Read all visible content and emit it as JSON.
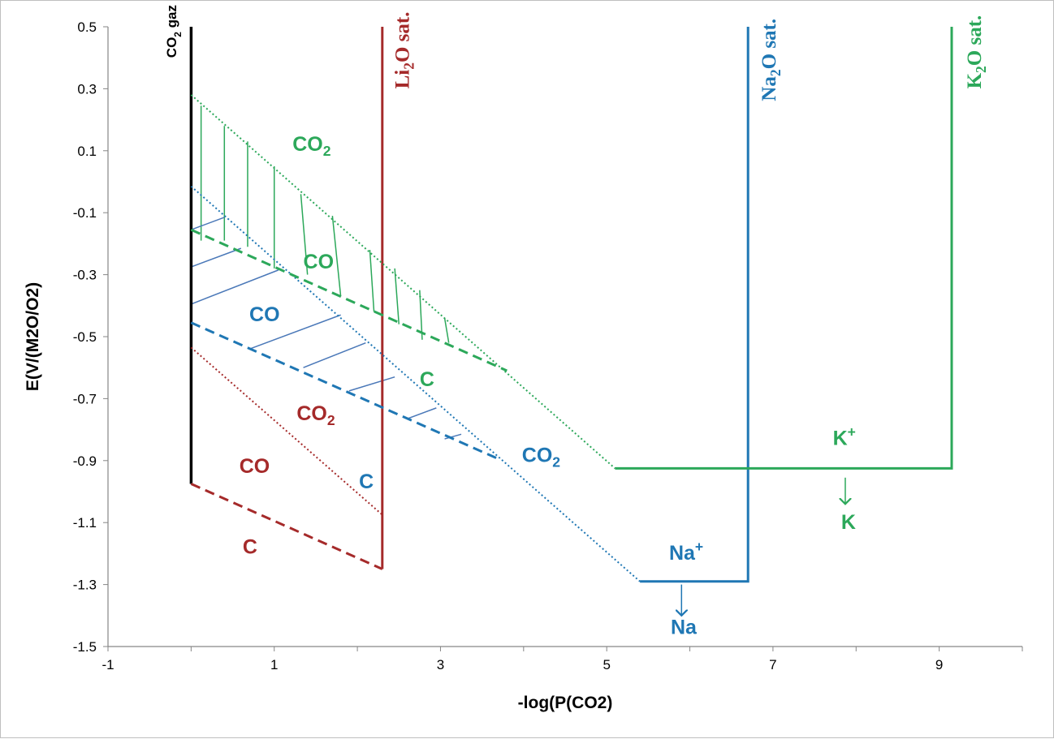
{
  "chart_data": {
    "type": "line",
    "xlabel": "-log(P(CO2)",
    "ylabel": "E(V/(M2O/O2)",
    "xlim": [
      -1,
      10
    ],
    "ylim": [
      -1.5,
      0.5
    ],
    "x_ticks": [
      "-1",
      "1",
      "3",
      "5",
      "7",
      "9"
    ],
    "y_ticks": [
      "0.5",
      "0.3",
      "0.1",
      "-0.1",
      "-0.3",
      "-0.5",
      "-0.7",
      "-0.9",
      "-1.1",
      "-1.3",
      "-1.5"
    ],
    "grid": false,
    "colors": {
      "li": "#a52a2a",
      "na": "#1f77b4",
      "k": "#2ca85a",
      "co2": "#000000"
    },
    "series": [
      {
        "key": "co2gaz",
        "color": "#000000",
        "style": "solid",
        "points": [
          [
            0,
            0.5
          ],
          [
            0,
            -0.975
          ]
        ]
      },
      {
        "key": "li_sat",
        "color": "#a52a2a",
        "style": "solid",
        "points": [
          [
            2.3,
            0.5
          ],
          [
            2.3,
            -1.25
          ]
        ]
      },
      {
        "key": "li_c_co",
        "color": "#a52a2a",
        "style": "dashed",
        "points": [
          [
            0,
            -0.975
          ],
          [
            2.3,
            -1.25
          ]
        ]
      },
      {
        "key": "li_co_co2",
        "color": "#a52a2a",
        "style": "dotted",
        "points": [
          [
            0,
            -0.535
          ],
          [
            2.3,
            -1.075
          ]
        ]
      },
      {
        "key": "na_co_co2",
        "color": "#1f77b4",
        "style": "dotted",
        "points": [
          [
            0,
            -0.015
          ],
          [
            5.4,
            -1.29
          ]
        ]
      },
      {
        "key": "na_c_co",
        "color": "#1f77b4",
        "style": "dashed",
        "points": [
          [
            0,
            -0.455
          ],
          [
            3.7,
            -0.895
          ]
        ]
      },
      {
        "key": "na_sat",
        "color": "#1f77b4",
        "style": "solid",
        "points": [
          [
            5.4,
            -1.29
          ],
          [
            6.7,
            -1.29
          ],
          [
            6.7,
            0.5
          ]
        ]
      },
      {
        "key": "k_co_co2",
        "color": "#2ca85a",
        "style": "dotted",
        "points": [
          [
            0,
            0.28
          ],
          [
            5.1,
            -0.925
          ]
        ]
      },
      {
        "key": "k_c_co",
        "color": "#2ca85a",
        "style": "dashed",
        "points": [
          [
            0,
            -0.155
          ],
          [
            3.8,
            -0.61
          ]
        ]
      },
      {
        "key": "k_sat",
        "color": "#2ca85a",
        "style": "solid",
        "points": [
          [
            5.1,
            -0.925
          ],
          [
            9.15,
            -0.925
          ],
          [
            9.15,
            0.5
          ]
        ]
      }
    ],
    "hatch_k": [
      [
        [
          0.12,
          0.245
        ],
        [
          0.12,
          -0.19
        ]
      ],
      [
        [
          0.4,
          0.18
        ],
        [
          0.4,
          -0.19
        ]
      ],
      [
        [
          0.68,
          0.13
        ],
        [
          0.68,
          -0.21
        ]
      ],
      [
        [
          1,
          0.05
        ],
        [
          1,
          -0.28
        ]
      ],
      [
        [
          1.32,
          -0.04
        ],
        [
          1.4,
          -0.3
        ]
      ],
      [
        [
          1.7,
          -0.11
        ],
        [
          1.8,
          -0.37
        ]
      ],
      [
        [
          2.15,
          -0.22
        ],
        [
          2.2,
          -0.42
        ]
      ],
      [
        [
          2.45,
          -0.28
        ],
        [
          2.5,
          -0.46
        ]
      ],
      [
        [
          2.75,
          -0.35
        ],
        [
          2.78,
          -0.51
        ]
      ],
      [
        [
          3.05,
          -0.44
        ],
        [
          3.1,
          -0.52
        ]
      ]
    ],
    "hatch_na": [
      [
        [
          0,
          -0.155
        ],
        [
          0.4,
          -0.115
        ]
      ],
      [
        [
          0,
          -0.275
        ],
        [
          0.6,
          -0.215
        ]
      ],
      [
        [
          0,
          -0.395
        ],
        [
          1.05,
          -0.285
        ]
      ],
      [
        [
          0.7,
          -0.54
        ],
        [
          1.8,
          -0.43
        ]
      ],
      [
        [
          1.35,
          -0.6
        ],
        [
          2.1,
          -0.52
        ]
      ],
      [
        [
          1.9,
          -0.675
        ],
        [
          2.45,
          -0.63
        ]
      ],
      [
        [
          2.6,
          -0.765
        ],
        [
          2.95,
          -0.73
        ]
      ],
      [
        [
          3.05,
          -0.83
        ],
        [
          3.25,
          -0.815
        ]
      ]
    ],
    "arrows": [
      {
        "key": "na_arrow",
        "color": "#1f77b4",
        "from": [
          5.9,
          -1.3
        ],
        "to": [
          5.9,
          -1.4
        ]
      },
      {
        "key": "k_arrow",
        "color": "#2ca85a",
        "from": [
          7.87,
          -0.955
        ],
        "to": [
          7.87,
          -1.04
        ]
      }
    ],
    "annotations": [
      {
        "key": "co2-gaz",
        "text": "CO",
        "sub": "2",
        "tail": " gaz",
        "color": "#000000",
        "x": -0.18,
        "y": 0.4,
        "rotate": true,
        "cls": "gaz"
      },
      {
        "key": "li-sat",
        "text": "Li",
        "sub": "2",
        "tail": "O sat.",
        "color": "#a52a2a",
        "x": 2.62,
        "y": 0.3,
        "rotate": true,
        "cls": "sat"
      },
      {
        "key": "na-sat",
        "text": "Na",
        "sub": "2",
        "tail": "O sat.",
        "color": "#1f77b4",
        "x": 7.03,
        "y": 0.26,
        "rotate": true,
        "cls": "sat"
      },
      {
        "key": "k-sat",
        "text": "K",
        "sub": "2",
        "tail": "O sat.",
        "color": "#2ca85a",
        "x": 9.5,
        "y": 0.3,
        "rotate": true,
        "cls": "sat"
      },
      {
        "key": "k-co2",
        "text": "CO",
        "sub": "2",
        "tail": "",
        "color": "#2ca85a",
        "x": 1.22,
        "y": 0.1,
        "cls": "lbl"
      },
      {
        "key": "k-co",
        "text": "CO",
        "sub": "",
        "tail": "",
        "color": "#2ca85a",
        "x": 1.35,
        "y": -0.28,
        "cls": "lbl"
      },
      {
        "key": "k-c",
        "text": "C",
        "sub": "",
        "tail": "",
        "color": "#2ca85a",
        "x": 2.75,
        "y": -0.66,
        "cls": "lbl"
      },
      {
        "key": "na-co",
        "text": "CO",
        "sub": "",
        "tail": "",
        "color": "#1f77b4",
        "x": 0.7,
        "y": -0.45,
        "cls": "lbl"
      },
      {
        "key": "na-co2",
        "text": "CO",
        "sub": "2",
        "tail": "",
        "color": "#1f77b4",
        "x": 3.98,
        "y": -0.905,
        "cls": "lbl"
      },
      {
        "key": "na-c",
        "text": "C",
        "sub": "",
        "tail": "",
        "color": "#1f77b4",
        "x": 2.02,
        "y": -0.99,
        "cls": "lbl"
      },
      {
        "key": "li-co2",
        "text": "CO",
        "sub": "2",
        "tail": "",
        "color": "#a52a2a",
        "x": 1.27,
        "y": -0.77,
        "cls": "lbl"
      },
      {
        "key": "li-co",
        "text": "CO",
        "sub": "",
        "tail": "",
        "color": "#a52a2a",
        "x": 0.58,
        "y": -0.94,
        "cls": "lbl"
      },
      {
        "key": "li-c",
        "text": "C",
        "sub": "",
        "tail": "",
        "color": "#a52a2a",
        "x": 0.62,
        "y": -1.2,
        "cls": "lbl"
      },
      {
        "key": "na-ion",
        "text": "Na",
        "sup": "+",
        "tail": "",
        "color": "#1f77b4",
        "x": 5.75,
        "y": -1.22,
        "cls": "lbl"
      },
      {
        "key": "na-metal",
        "text": "Na",
        "sub": "",
        "tail": "",
        "color": "#1f77b4",
        "x": 5.77,
        "y": -1.46,
        "cls": "lbl"
      },
      {
        "key": "k-ion",
        "text": "K",
        "sup": "+",
        "tail": "",
        "color": "#2ca85a",
        "x": 7.72,
        "y": -0.85,
        "cls": "lbl"
      },
      {
        "key": "k-metal",
        "text": "K",
        "sub": "",
        "tail": "",
        "color": "#2ca85a",
        "x": 7.82,
        "y": -1.12,
        "cls": "lbl"
      }
    ]
  }
}
